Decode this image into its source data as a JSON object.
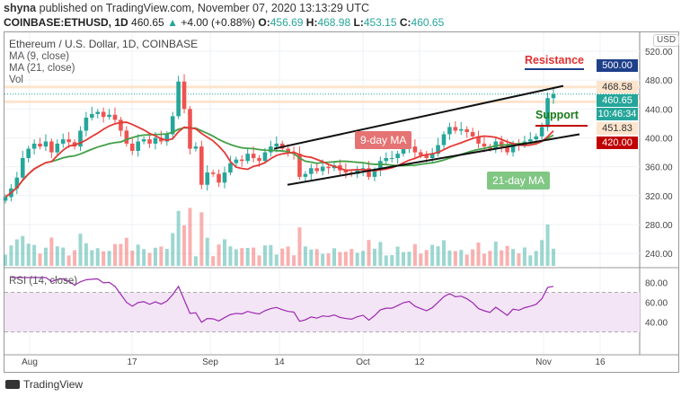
{
  "header": {
    "author": "shyna",
    "published": "published on TradingView.com, November 07, 2020 13:13:29 UTC",
    "symbol": "COINBASE:ETHUSD, 1D",
    "last": "460.65",
    "change": "+4.00 (+0.88%)",
    "o": "456.69",
    "h": "468.98",
    "l": "453.15",
    "c": "460.65"
  },
  "legend": {
    "title": "Ethereum / U.S. Dollar, 1D, COINBASE",
    "ma9": "MA (9, close)",
    "ma21": "MA (21, close)",
    "vol": "Vol",
    "rsi": "RSI (14, close)"
  },
  "axis": {
    "currency": "USD",
    "price_ticks": [
      "520.00",
      "480.00",
      "440.00",
      "400.00",
      "360.00",
      "320.00",
      "280.00",
      "240.00"
    ],
    "rsi_ticks": [
      "80.00",
      "60.00",
      "40.00"
    ],
    "time_ticks": [
      "Aug",
      "17",
      "Sep",
      "14",
      "Oct",
      "12",
      "Nov",
      "16"
    ]
  },
  "tags": {
    "high": "468.58",
    "last": "460.65",
    "countdown": "10:46:34",
    "low": "451.83",
    "resistance": "500.00",
    "support": "420.00"
  },
  "annotations": {
    "resistance": "Resistance",
    "support": "Support",
    "ma9": "9-day MA",
    "ma21": "21-day MA"
  },
  "colors": {
    "up": "#26a69a",
    "down": "#ef5350",
    "ma9": "#e53935",
    "ma21": "#43a047",
    "resistance": "#1e3f8a",
    "support": "#c00000",
    "rsi": "#9c27b0"
  },
  "footer": {
    "brand": "TradingView"
  },
  "closes": [
    318,
    330,
    345,
    372,
    385,
    392,
    388,
    395,
    380,
    392,
    398,
    394,
    388,
    410,
    428,
    433,
    436,
    429,
    432,
    425,
    410,
    392,
    382,
    395,
    398,
    392,
    400,
    395,
    405,
    430,
    478,
    440,
    385,
    388,
    335,
    352,
    350,
    338,
    352,
    365,
    370,
    368,
    378,
    372,
    368,
    380,
    388,
    392,
    385,
    380,
    378,
    346,
    350,
    358,
    354,
    360,
    358,
    362,
    355,
    352,
    350,
    355,
    358,
    346,
    355,
    368,
    372,
    372,
    378,
    385,
    388,
    380,
    376,
    372,
    378,
    390,
    405,
    415,
    410,
    412,
    408,
    402,
    392,
    388,
    385,
    395,
    388,
    380,
    392,
    390,
    395,
    398,
    402,
    415,
    455,
    460.65
  ]
}
